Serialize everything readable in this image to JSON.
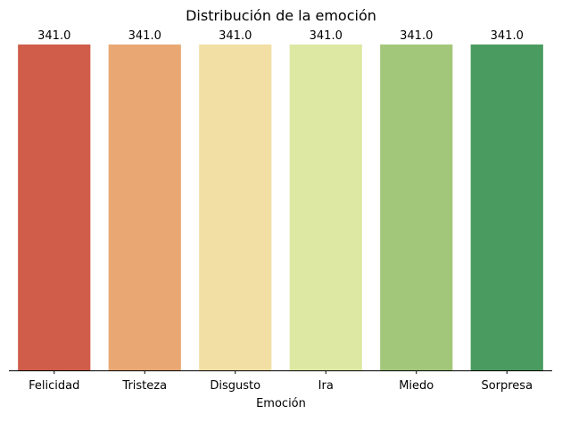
{
  "chart_data": {
    "type": "bar",
    "title": "Distribución de la emoción",
    "xlabel": "Emoción",
    "ylabel": "",
    "categories": [
      "Felicidad",
      "Tristeza",
      "Disgusto",
      "Ira",
      "Miedo",
      "Sorpresa"
    ],
    "values": [
      341.0,
      341.0,
      341.0,
      341.0,
      341.0,
      341.0
    ],
    "data_labels": [
      "341.0",
      "341.0",
      "341.0",
      "341.0",
      "341.0",
      "341.0"
    ],
    "colors": [
      "#d05c4a",
      "#e9a873",
      "#f2dfa4",
      "#dde8a3",
      "#a2c77a",
      "#4a9b5f"
    ],
    "ylim": [
      0,
      341
    ],
    "grid": false,
    "y_axis_visible": false
  }
}
